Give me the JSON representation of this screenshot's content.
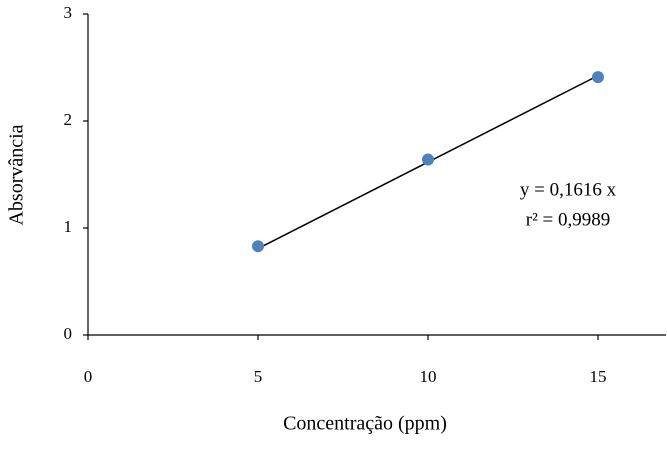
{
  "chart_data": {
    "type": "scatter",
    "x_label": "Concentração (ppm)",
    "y_label": "Absorvância",
    "series": [
      {
        "name": "Absorvância",
        "color": "#4f81bd",
        "x": [
          5,
          10,
          15
        ],
        "values": [
          0.83,
          1.64,
          2.41
        ]
      }
    ],
    "trendline_slope": 0.1616,
    "annotations": [
      "y  = 0,1616 x",
      "r²  = 0,9989"
    ],
    "xlim": [
      0,
      17
    ],
    "ylim": [
      0,
      3
    ],
    "xticks": [
      0,
      5,
      10,
      15
    ],
    "yticks": [
      0,
      1,
      2,
      3
    ],
    "grid": false
  }
}
